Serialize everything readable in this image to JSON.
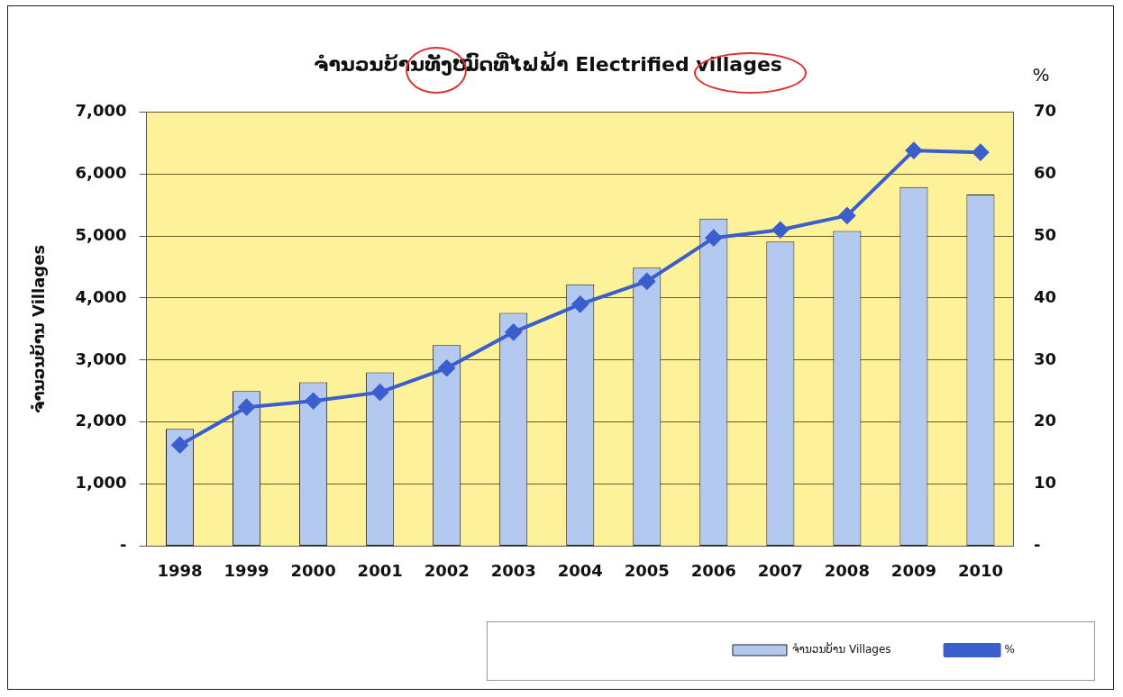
{
  "chart_data": {
    "type": "bar",
    "title": "ຈຳນວນບ້ານທັງໝົດທີ່ໄຟຟ້າ Electrified villages",
    "ylabel": "ຈຳນວນບ້ານ Villages",
    "y2label": "%",
    "categories": [
      "1998",
      "1999",
      "2000",
      "2001",
      "2002",
      "2003",
      "2004",
      "2005",
      "2006",
      "2007",
      "2008",
      "2009",
      "2010"
    ],
    "series": [
      {
        "name": "ຈຳນວນບ້ານ Villages",
        "color": "#b4c9ef",
        "values": [
          1890,
          2500,
          2640,
          2800,
          3240,
          3760,
          4220,
          4490,
          5280,
          4910,
          5080,
          5790,
          5670
        ]
      },
      {
        "name": "%",
        "type": "line",
        "axis": "y2",
        "color": "#3a5fcd",
        "values": [
          16.3,
          22.4,
          23.4,
          24.8,
          28.7,
          34.5,
          39.0,
          42.7,
          49.7,
          51.0,
          53.3,
          63.8,
          63.5
        ]
      }
    ],
    "ylim": [
      0,
      7000
    ],
    "yticks": [
      {
        "value": 0,
        "label": "-"
      },
      {
        "value": 1000,
        "label": "1,000"
      },
      {
        "value": 2000,
        "label": "2,000"
      },
      {
        "value": 3000,
        "label": "3,000"
      },
      {
        "value": 4000,
        "label": "4,000"
      },
      {
        "value": 5000,
        "label": "5,000"
      },
      {
        "value": 6000,
        "label": "6,000"
      },
      {
        "value": 7000,
        "label": "7,000"
      }
    ],
    "y2lim": [
      0,
      70
    ],
    "y2ticks": [
      {
        "value": 0,
        "label": "-"
      },
      10,
      20,
      30,
      40,
      50,
      60,
      70
    ],
    "grid": "y",
    "legend": "bottom",
    "marker": "diamond"
  }
}
